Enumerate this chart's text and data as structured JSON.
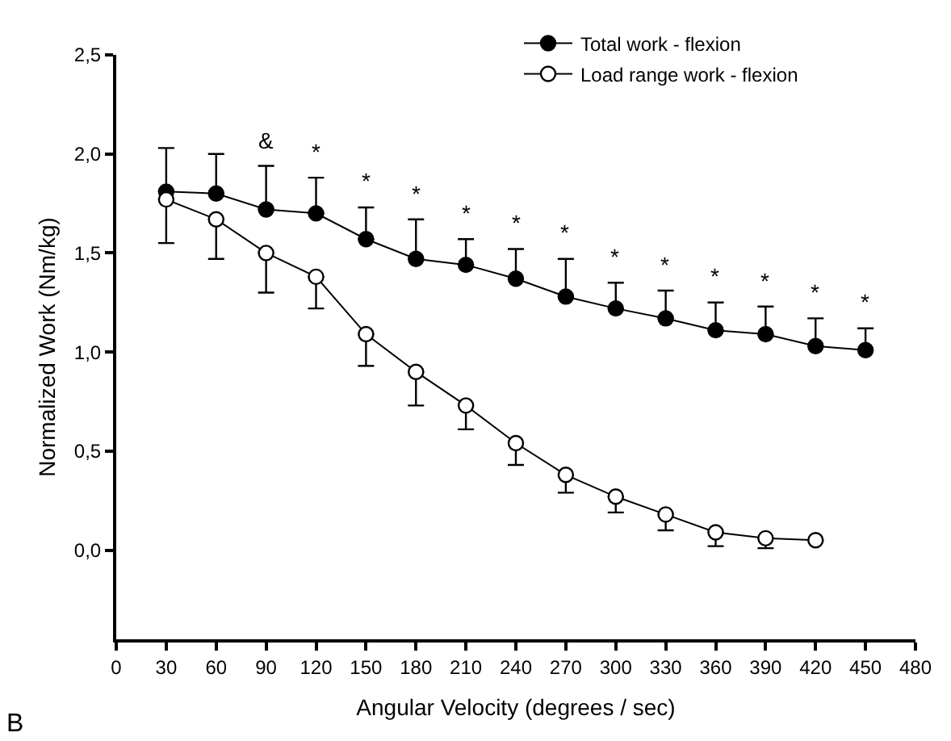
{
  "chart_data": {
    "type": "line",
    "xlabel": "Angular Velocity (degrees / sec)",
    "ylabel": "Normalized Work (Nm/kg)",
    "xlim": [
      0,
      480
    ],
    "xticks": [
      0,
      30,
      60,
      90,
      120,
      150,
      180,
      210,
      240,
      270,
      300,
      330,
      360,
      390,
      420,
      450,
      480
    ],
    "ylim": [
      -0.45,
      2.5
    ],
    "yticks": [
      {
        "value": 0,
        "label": "0,0"
      },
      {
        "value": 0.5,
        "label": "0,5"
      },
      {
        "value": 1,
        "label": "1,0"
      },
      {
        "value": 1.5,
        "label": "1,5"
      },
      {
        "value": 2,
        "label": "2,0"
      },
      {
        "value": 2.5,
        "label": "2,5"
      }
    ],
    "legend": "top right",
    "marker": "circle",
    "line_style": "solid",
    "series": [
      {
        "name": "Total work - flexion",
        "color": "#000000",
        "x": [
          30,
          60,
          90,
          120,
          150,
          180,
          210,
          240,
          270,
          300,
          330,
          360,
          390,
          420,
          450
        ],
        "values": [
          1.81,
          1.8,
          1.72,
          1.7,
          1.57,
          1.47,
          1.44,
          1.37,
          1.28,
          1.22,
          1.17,
          1.11,
          1.09,
          1.03,
          1.01
        ],
        "errors": [
          [
            1.81,
            2.03
          ],
          [
            1.8,
            2.0
          ],
          [
            1.72,
            1.94
          ],
          [
            1.7,
            1.88
          ],
          [
            1.57,
            1.73
          ],
          [
            1.47,
            1.67
          ],
          [
            1.44,
            1.57
          ],
          [
            1.37,
            1.52
          ],
          [
            1.28,
            1.47
          ],
          [
            1.22,
            1.35
          ],
          [
            1.17,
            1.31
          ],
          [
            1.11,
            1.25
          ],
          [
            1.09,
            1.23
          ],
          [
            1.03,
            1.17
          ],
          [
            1.01,
            1.12
          ]
        ]
      },
      {
        "name": "Load range work - flexion",
        "color": "#000000",
        "marker": "circle-open",
        "x": [
          30,
          60,
          90,
          120,
          150,
          180,
          210,
          240,
          270,
          300,
          330,
          360,
          390,
          420
        ],
        "values": [
          1.77,
          1.67,
          1.5,
          1.38,
          1.09,
          0.9,
          0.73,
          0.54,
          0.38,
          0.27,
          0.18,
          0.09,
          0.06,
          0.05
        ],
        "errors": [
          [
            1.55,
            1.77
          ],
          [
            1.47,
            1.67
          ],
          [
            1.3,
            1.5
          ],
          [
            1.22,
            1.38
          ],
          [
            0.93,
            1.09
          ],
          [
            0.73,
            0.9
          ],
          [
            0.61,
            0.73
          ],
          [
            0.43,
            0.54
          ],
          [
            0.29,
            0.38
          ],
          [
            0.19,
            0.27
          ],
          [
            0.1,
            0.18
          ],
          [
            0.02,
            0.09
          ],
          [
            0.01,
            0.06
          ],
          null
        ]
      }
    ],
    "annotations": [
      {
        "text": "&",
        "x": 90,
        "y": 1.94
      },
      {
        "text": "*",
        "x": 120,
        "y": 1.88
      },
      {
        "text": "*",
        "x": 150,
        "y": 1.73
      },
      {
        "text": "*",
        "x": 180,
        "y": 1.67
      },
      {
        "text": "*",
        "x": 210,
        "y": 1.57
      },
      {
        "text": "*",
        "x": 240,
        "y": 1.52
      },
      {
        "text": "*",
        "x": 270,
        "y": 1.47
      },
      {
        "text": "*",
        "x": 300,
        "y": 1.35
      },
      {
        "text": "*",
        "x": 330,
        "y": 1.31
      },
      {
        "text": "*",
        "x": 360,
        "y": 1.25
      },
      {
        "text": "*",
        "x": 390,
        "y": 1.23
      },
      {
        "text": "*",
        "x": 420,
        "y": 1.17
      },
      {
        "text": "*",
        "x": 450,
        "y": 1.12
      },
      "B"
    ]
  }
}
